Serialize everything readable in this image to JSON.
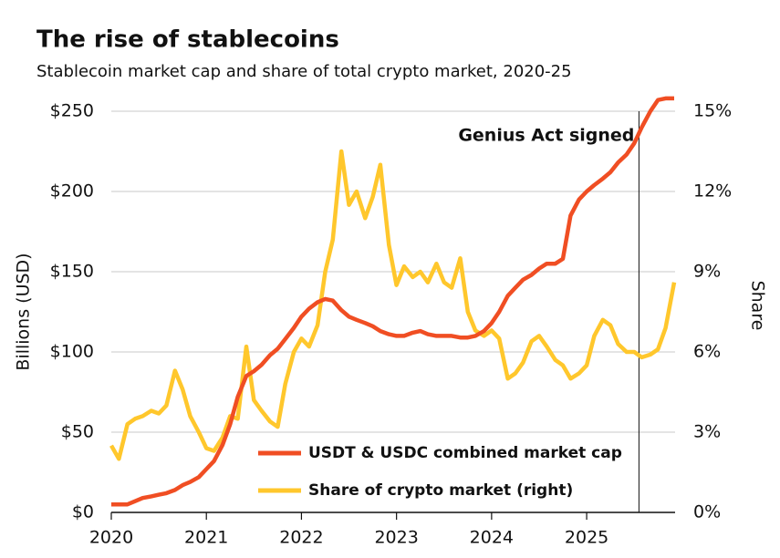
{
  "chart_data": {
    "type": "line",
    "title": "The rise of stablecoins",
    "subtitle": "Stablecoin market cap and share of total crypto market, 2020-25",
    "y_label": "Billions (USD)",
    "y2_label": "Share",
    "x": [
      2020.0,
      2020.08,
      2020.17,
      2020.25,
      2020.33,
      2020.42,
      2020.5,
      2020.58,
      2020.67,
      2020.75,
      2020.83,
      2020.92,
      2021.0,
      2021.08,
      2021.17,
      2021.25,
      2021.33,
      2021.42,
      2021.5,
      2021.58,
      2021.67,
      2021.75,
      2021.83,
      2021.92,
      2022.0,
      2022.08,
      2022.17,
      2022.25,
      2022.33,
      2022.42,
      2022.5,
      2022.58,
      2022.67,
      2022.75,
      2022.83,
      2022.92,
      2023.0,
      2023.08,
      2023.17,
      2023.25,
      2023.33,
      2023.42,
      2023.5,
      2023.58,
      2023.67,
      2023.75,
      2023.83,
      2023.92,
      2024.0,
      2024.08,
      2024.17,
      2024.25,
      2024.33,
      2024.42,
      2024.5,
      2024.58,
      2024.67,
      2024.75,
      2024.83,
      2024.92,
      2025.0,
      2025.08,
      2025.17,
      2025.25,
      2025.33,
      2025.42,
      2025.5,
      2025.58,
      2025.67,
      2025.75,
      2025.83,
      2025.92
    ],
    "series": [
      {
        "name": "USDT & USDC combined market cap",
        "color": "#f04e23",
        "axis": "y",
        "values": [
          5,
          5,
          5,
          7,
          9,
          10,
          11,
          12,
          14,
          17,
          19,
          22,
          27,
          32,
          42,
          55,
          72,
          85,
          88,
          92,
          98,
          102,
          108,
          115,
          122,
          127,
          131,
          133,
          132,
          126,
          122,
          120,
          118,
          116,
          113,
          111,
          110,
          110,
          112,
          113,
          111,
          110,
          110,
          110,
          109,
          109,
          110,
          113,
          118,
          125,
          135,
          140,
          145,
          148,
          152,
          155,
          155,
          158,
          185,
          195,
          200,
          204,
          208,
          212,
          218,
          223,
          230,
          240,
          250,
          257,
          258,
          258
        ]
      },
      {
        "name": "Share of crypto market (right)",
        "color": "#ffc72c",
        "axis": "y2",
        "values": [
          2.5,
          2.0,
          3.3,
          3.5,
          3.6,
          3.8,
          3.7,
          4.0,
          5.3,
          4.6,
          3.6,
          3.0,
          2.4,
          2.3,
          2.8,
          3.6,
          3.5,
          6.2,
          4.2,
          3.8,
          3.4,
          3.2,
          4.8,
          6.0,
          6.5,
          6.2,
          7.0,
          9.0,
          10.2,
          13.5,
          11.5,
          12.0,
          11.0,
          11.8,
          13.0,
          10.0,
          8.5,
          9.2,
          8.8,
          9.0,
          8.6,
          9.3,
          8.6,
          8.4,
          9.5,
          7.5,
          6.8,
          6.6,
          6.8,
          6.5,
          5.0,
          5.2,
          5.6,
          6.4,
          6.6,
          6.2,
          5.7,
          5.5,
          5.0,
          5.2,
          5.5,
          6.6,
          7.2,
          7.0,
          6.3,
          6.0,
          6.0,
          5.8,
          5.9,
          6.1,
          6.9,
          8.6
        ]
      }
    ],
    "xlim": [
      2020,
      2025.93
    ],
    "xticks": [
      2020,
      2021,
      2022,
      2023,
      2024,
      2025
    ],
    "ylim": [
      0,
      250
    ],
    "yticks": [
      {
        "value": 0,
        "label": "$0"
      },
      {
        "value": 50,
        "label": "$50"
      },
      {
        "value": 100,
        "label": "$100"
      },
      {
        "value": 150,
        "label": "$150"
      },
      {
        "value": 200,
        "label": "$200"
      },
      {
        "value": 250,
        "label": "$250"
      }
    ],
    "y2lim": [
      0,
      15
    ],
    "y2ticks": [
      {
        "value": 0,
        "label": "0%"
      },
      {
        "value": 3,
        "label": "3%"
      },
      {
        "value": 6,
        "label": "6%"
      },
      {
        "value": 9,
        "label": "9%"
      },
      {
        "value": 12,
        "label": "12%"
      },
      {
        "value": 15,
        "label": "15%"
      }
    ],
    "grid": true,
    "legend": "lower center",
    "annotation": {
      "text": "Genius Act signed",
      "x": 2025.55
    }
  }
}
